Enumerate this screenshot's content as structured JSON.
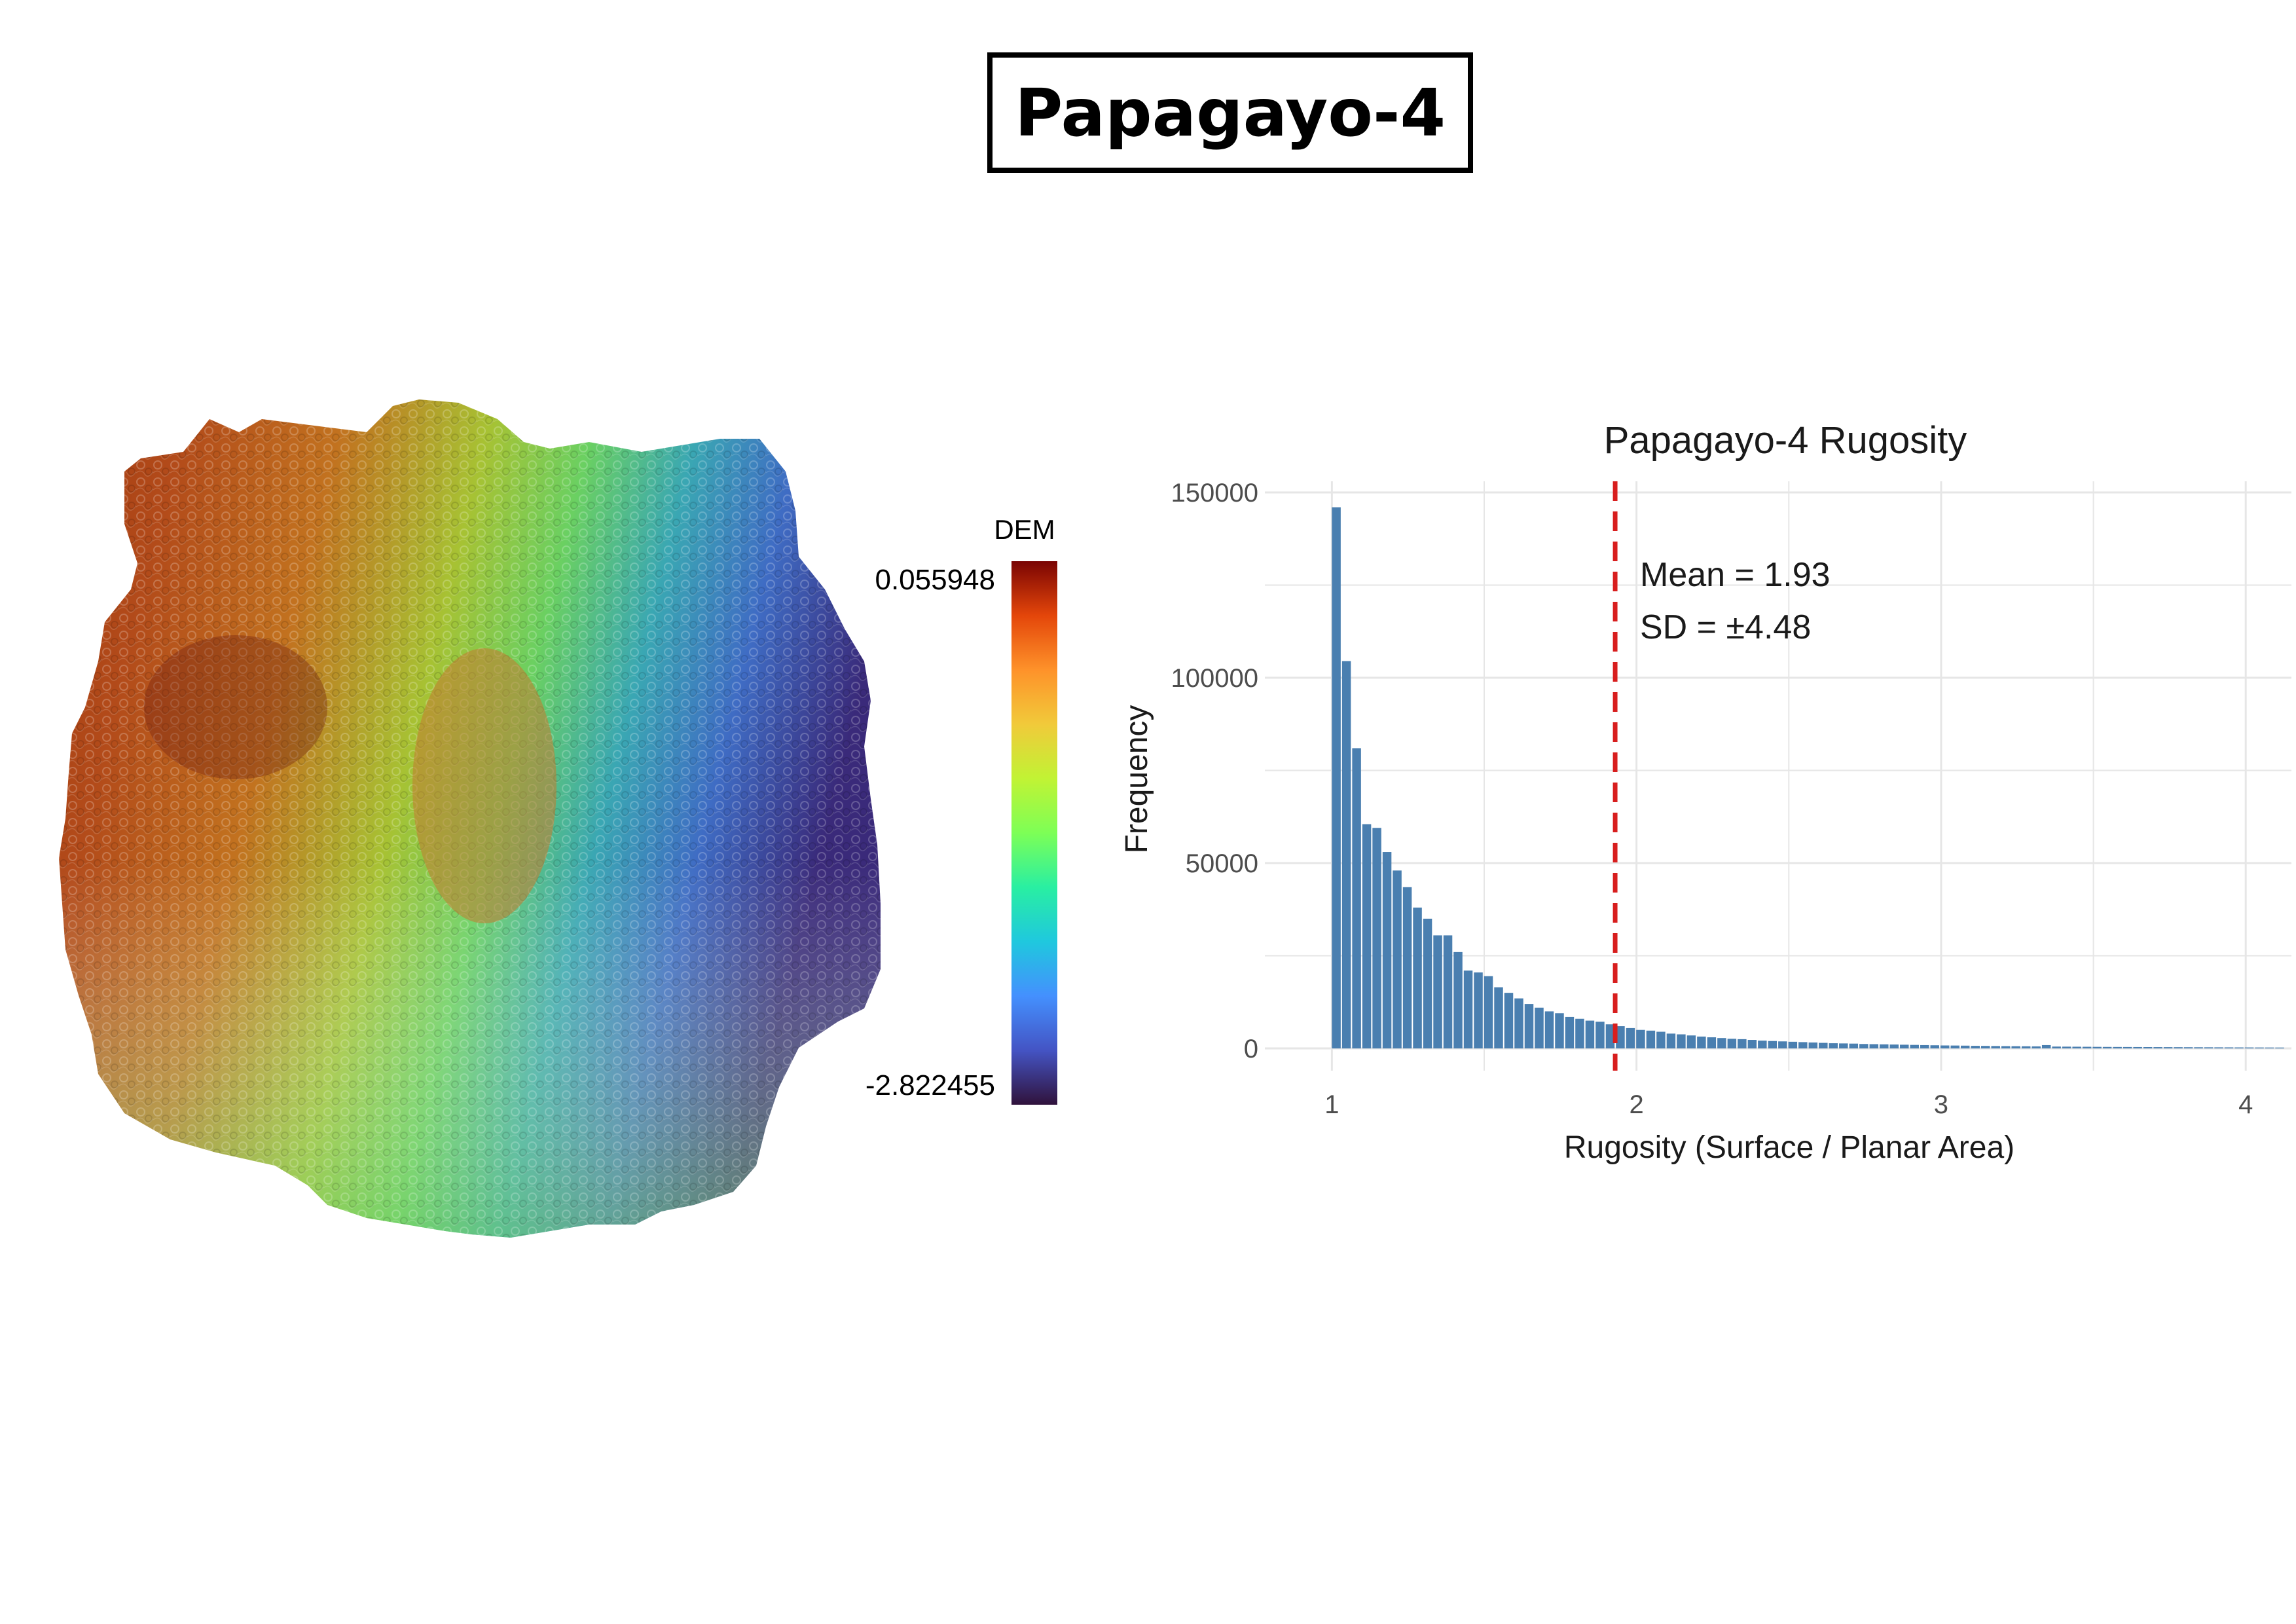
{
  "page_title": "Papagayo-4",
  "colors": {
    "bar": "#4a7fb0",
    "mean_line": "#d81e1e",
    "grid": "#e6e6e6",
    "title_border": "#000000"
  },
  "dem_legend": {
    "title": "DEM",
    "max_label": "0.055948",
    "min_label": "-2.822455",
    "colormap": "turbo"
  },
  "chart_data": {
    "type": "bar",
    "title": "Papagayo-4 Rugosity",
    "xlabel": "Rugosity (Surface / Planar Area)",
    "ylabel": "Frequency",
    "xlim": [
      0.78,
      4.15
    ],
    "ylim": [
      -6000,
      153000
    ],
    "grid": true,
    "x_ticks": [
      1,
      2,
      3,
      4
    ],
    "y_ticks": [
      0,
      50000,
      100000,
      150000
    ],
    "bin_start": 1.0,
    "bin_width": 0.0333,
    "values": [
      146000,
      104500,
      81000,
      60500,
      59500,
      53000,
      48000,
      43500,
      38000,
      35000,
      30500,
      30500,
      26000,
      21000,
      20500,
      19500,
      16500,
      15000,
      13500,
      12000,
      11000,
      10000,
      9500,
      8500,
      8000,
      7500,
      7200,
      6500,
      6000,
      5500,
      5000,
      4800,
      4500,
      4000,
      3800,
      3500,
      3200,
      3000,
      2800,
      2600,
      2500,
      2300,
      2100,
      2000,
      1900,
      1800,
      1700,
      1600,
      1500,
      1400,
      1350,
      1300,
      1200,
      1150,
      1100,
      1050,
      1000,
      950,
      900,
      850,
      800,
      780,
      750,
      700,
      680,
      650,
      620,
      600,
      580,
      550,
      900,
      500,
      480,
      460,
      440,
      420,
      400,
      390,
      380,
      370,
      360,
      350,
      340,
      330,
      320,
      310,
      300,
      290,
      280,
      270,
      260,
      250,
      240,
      230
    ],
    "mean_line_x": 1.93,
    "annotations": [
      "Mean = 1.93",
      "SD = ±4.48"
    ]
  }
}
